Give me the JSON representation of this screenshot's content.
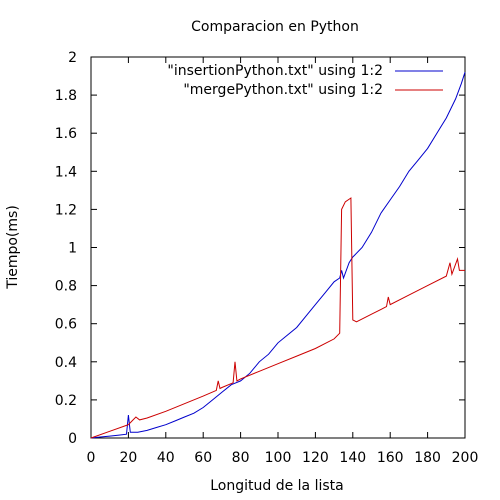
{
  "chart_data": {
    "type": "line",
    "title": "Comparacion en Python",
    "xlabel": "Longitud de la lista",
    "ylabel": "Tiempo(ms)",
    "xlim": [
      0,
      200
    ],
    "ylim": [
      0,
      2
    ],
    "x_ticks": [
      "0",
      "20",
      "40",
      "60",
      "80",
      "100",
      "120",
      "140",
      "160",
      "180",
      "200"
    ],
    "y_ticks": [
      "0",
      "0.2",
      "0.4",
      "0.6",
      "0.8",
      "1",
      "1.2",
      "1.4",
      "1.6",
      "1.8",
      "2"
    ],
    "grid": false,
    "legend_position": "top-right",
    "series": [
      {
        "name": "\"insertionPython.txt\" using 1:2",
        "color": "#0000cc",
        "points": [
          [
            0,
            0.0
          ],
          [
            5,
            0.005
          ],
          [
            10,
            0.01
          ],
          [
            15,
            0.015
          ],
          [
            19,
            0.02
          ],
          [
            20,
            0.12
          ],
          [
            21,
            0.03
          ],
          [
            25,
            0.03
          ],
          [
            30,
            0.04
          ],
          [
            35,
            0.055
          ],
          [
            40,
            0.07
          ],
          [
            45,
            0.09
          ],
          [
            50,
            0.11
          ],
          [
            55,
            0.13
          ],
          [
            60,
            0.16
          ],
          [
            65,
            0.2
          ],
          [
            70,
            0.24
          ],
          [
            75,
            0.28
          ],
          [
            80,
            0.3
          ],
          [
            85,
            0.34
          ],
          [
            90,
            0.4
          ],
          [
            95,
            0.44
          ],
          [
            100,
            0.5
          ],
          [
            105,
            0.54
          ],
          [
            110,
            0.58
          ],
          [
            115,
            0.64
          ],
          [
            120,
            0.7
          ],
          [
            125,
            0.76
          ],
          [
            130,
            0.82
          ],
          [
            133,
            0.84
          ],
          [
            134,
            0.88
          ],
          [
            135,
            0.84
          ],
          [
            138,
            0.92
          ],
          [
            140,
            0.95
          ],
          [
            141,
            0.96
          ],
          [
            145,
            1.0
          ],
          [
            150,
            1.08
          ],
          [
            155,
            1.18
          ],
          [
            160,
            1.25
          ],
          [
            165,
            1.32
          ],
          [
            170,
            1.4
          ],
          [
            175,
            1.46
          ],
          [
            180,
            1.52
          ],
          [
            185,
            1.6
          ],
          [
            190,
            1.68
          ],
          [
            195,
            1.78
          ],
          [
            198,
            1.86
          ],
          [
            200,
            1.92
          ]
        ]
      },
      {
        "name": "\"mergePython.txt\" using 1:2",
        "color": "#cc0000",
        "points": [
          [
            0,
            0.0
          ],
          [
            10,
            0.035
          ],
          [
            20,
            0.07
          ],
          [
            22,
            0.09
          ],
          [
            24,
            0.11
          ],
          [
            26,
            0.095
          ],
          [
            30,
            0.105
          ],
          [
            40,
            0.14
          ],
          [
            50,
            0.18
          ],
          [
            60,
            0.22
          ],
          [
            67,
            0.25
          ],
          [
            68,
            0.3
          ],
          [
            69,
            0.26
          ],
          [
            70,
            0.265
          ],
          [
            76,
            0.29
          ],
          [
            77,
            0.4
          ],
          [
            78,
            0.3
          ],
          [
            80,
            0.31
          ],
          [
            90,
            0.35
          ],
          [
            100,
            0.39
          ],
          [
            110,
            0.43
          ],
          [
            120,
            0.47
          ],
          [
            130,
            0.52
          ],
          [
            133,
            0.55
          ],
          [
            134,
            1.2
          ],
          [
            136,
            1.24
          ],
          [
            139,
            1.26
          ],
          [
            140,
            0.62
          ],
          [
            142,
            0.61
          ],
          [
            150,
            0.65
          ],
          [
            158,
            0.69
          ],
          [
            159,
            0.74
          ],
          [
            160,
            0.7
          ],
          [
            170,
            0.75
          ],
          [
            180,
            0.8
          ],
          [
            190,
            0.85
          ],
          [
            192,
            0.92
          ],
          [
            193,
            0.86
          ],
          [
            196,
            0.94
          ],
          [
            197,
            0.88
          ],
          [
            200,
            0.88
          ]
        ]
      }
    ]
  }
}
